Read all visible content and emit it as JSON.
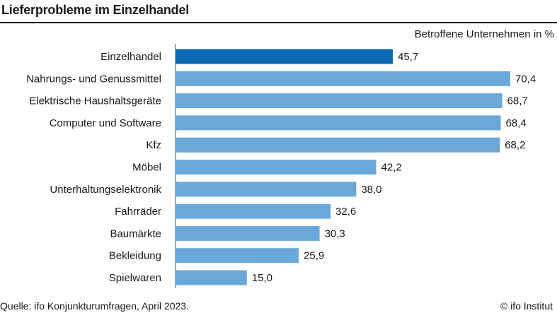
{
  "title": "Lieferprobleme im Einzelhandel",
  "unit_label": "Betroffene Unternehmen in %",
  "source": "Quelle: ifo Konjunkturumfragen, April 2023.",
  "credit": "© ifo Institut",
  "colors": {
    "highlight": "#0a6ab5",
    "bar": "#6aa8d9",
    "text": "#1a1a1a"
  },
  "chart_data": {
    "type": "bar",
    "orientation": "horizontal",
    "categories": [
      "Einzelhandel",
      "Nahrungs- und Genussmittel",
      "Elektrische Haushaltsgeräte",
      "Computer und Software",
      "Kfz",
      "Möbel",
      "Unterhaltungselektronik",
      "Fahrräder",
      "Baumärkte",
      "Bekleidung",
      "Spielwaren"
    ],
    "values": [
      45.7,
      70.4,
      68.7,
      68.4,
      68.2,
      42.2,
      38.0,
      32.6,
      30.3,
      25.9,
      15.0
    ],
    "value_labels": [
      "45,7",
      "70,4",
      "68,7",
      "68,4",
      "68,2",
      "42,2",
      "38,0",
      "32,6",
      "30,3",
      "25,9",
      "15,0"
    ],
    "highlight_category": "Einzelhandel",
    "xlim": [
      0,
      70.4
    ],
    "grid": false,
    "legend": "none"
  }
}
